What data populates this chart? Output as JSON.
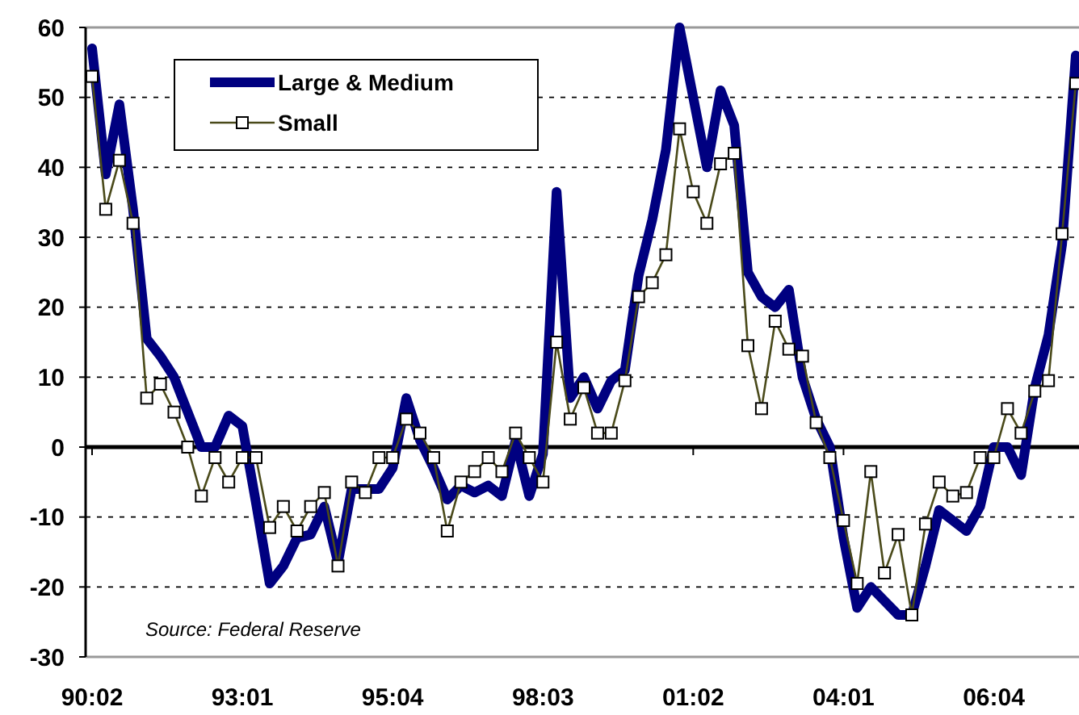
{
  "chart_data": {
    "type": "line",
    "categories": [
      "90:02",
      null,
      null,
      null,
      null,
      null,
      null,
      null,
      null,
      null,
      null,
      "93:01",
      null,
      null,
      null,
      null,
      null,
      null,
      null,
      null,
      null,
      null,
      "95:04",
      null,
      null,
      null,
      null,
      null,
      null,
      null,
      null,
      null,
      null,
      "98:03",
      null,
      null,
      null,
      null,
      null,
      null,
      null,
      null,
      null,
      null,
      "01:02",
      null,
      null,
      null,
      null,
      null,
      null,
      null,
      null,
      null,
      null,
      "04:01",
      null,
      null,
      null,
      null,
      null,
      null,
      null,
      null,
      null,
      null,
      "06:04",
      null,
      null,
      null,
      null,
      null,
      null
    ],
    "series": [
      {
        "name": "Large & Medium",
        "color": "#000080",
        "marker": "none",
        "values": [
          57,
          39,
          49,
          34,
          15.5,
          13,
          10,
          5,
          0,
          0,
          4.5,
          3,
          -8,
          -19.5,
          -17,
          -13,
          -12.5,
          -8.5,
          -16.5,
          -6,
          -6,
          -6,
          -3,
          7,
          1,
          -3,
          -7.5,
          -5.5,
          -6.5,
          -5.5,
          -7,
          1,
          -7,
          -1,
          36.5,
          7,
          10,
          5.5,
          9.5,
          11,
          24.5,
          32.5,
          42.5,
          60,
          50,
          40,
          51,
          46,
          25,
          21.5,
          20,
          22.5,
          10,
          4,
          0,
          -13,
          -23,
          -20,
          -22,
          -24,
          -24,
          -17,
          -9,
          -10.5,
          -12,
          -8.5,
          0,
          0,
          -4,
          8.5,
          16,
          29,
          56
        ]
      },
      {
        "name": "Small",
        "color": "#4a4a1a",
        "marker": "square",
        "values": [
          53,
          34,
          41,
          32,
          7,
          9,
          5,
          0,
          -7,
          -1.5,
          -5,
          -1.5,
          -1.5,
          -11.5,
          -8.5,
          -12,
          -8.5,
          -6.5,
          -17,
          -5,
          -6.5,
          -1.5,
          -1.5,
          4,
          2,
          -1.5,
          -12,
          -5,
          -3.5,
          -1.5,
          -3.5,
          2,
          -1.5,
          -5,
          15,
          4,
          8.5,
          2,
          2,
          9.5,
          21.5,
          23.5,
          27.5,
          45.5,
          36.5,
          32,
          40.5,
          42,
          14.5,
          5.5,
          18,
          14,
          13,
          3.5,
          -1.5,
          -10.5,
          -19.5,
          -3.5,
          -18,
          -12.5,
          -24,
          -11,
          -5,
          -7,
          -6.5,
          -1.5,
          -1.5,
          5.5,
          2,
          8,
          9.5,
          30.5,
          52
        ]
      }
    ],
    "ylim": [
      -30,
      60
    ],
    "yticks": [
      -30,
      -20,
      -10,
      0,
      10,
      20,
      30,
      40,
      50,
      60
    ],
    "ref_lines": [
      {
        "axis": "y",
        "value": 0,
        "color": "#000000"
      }
    ],
    "grid": "y",
    "legend": "top left",
    "annotations": [
      "Source: Federal Reserve"
    ]
  }
}
